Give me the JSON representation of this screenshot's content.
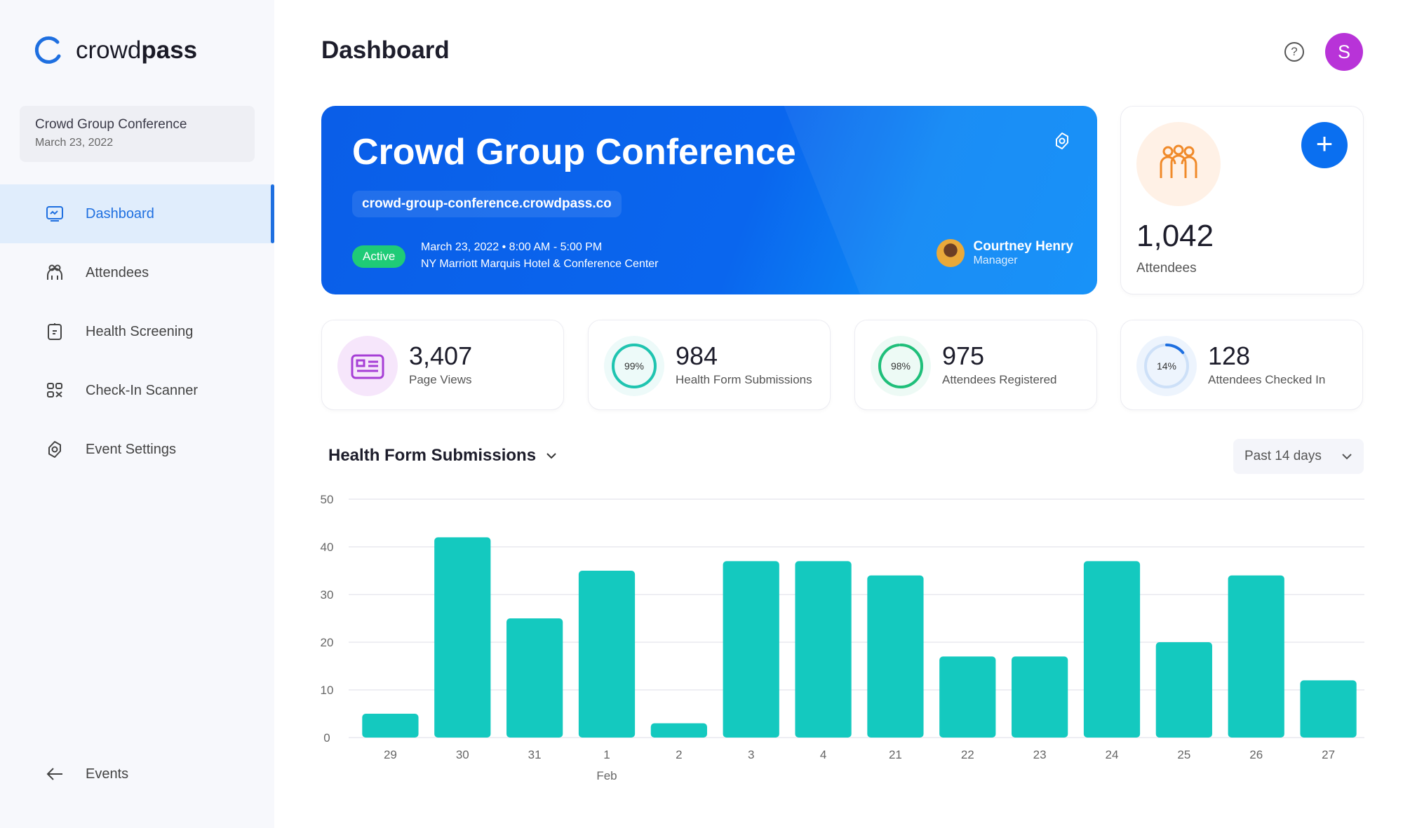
{
  "brand": {
    "name_light": "crowd",
    "name_bold": "pass",
    "accent": "#1e6fe0"
  },
  "sidebar": {
    "event": {
      "name": "Crowd Group Conference",
      "date": "March 23, 2022"
    },
    "items": [
      {
        "label": "Dashboard",
        "icon": "dashboard-icon",
        "active": true
      },
      {
        "label": "Attendees",
        "icon": "attendees-icon"
      },
      {
        "label": "Health Screening",
        "icon": "clipboard-icon"
      },
      {
        "label": "Check-In Scanner",
        "icon": "qr-code-icon"
      },
      {
        "label": "Event Settings",
        "icon": "gear-icon"
      }
    ],
    "back": "Events"
  },
  "header": {
    "title": "Dashboard",
    "help": "?",
    "avatar": "S",
    "avatar_color": "#b833d8"
  },
  "banner": {
    "title": "Crowd Group Conference",
    "url": "crowd-group-conference.crowdpass.co",
    "status": "Active",
    "datetime": "March 23, 2022  •  8:00 AM - 5:00 PM",
    "venue": "NY Marriott Marquis Hotel & Conference Center",
    "manager_name": "Courtney Henry",
    "manager_role": "Manager"
  },
  "attendees": {
    "value": "1,042",
    "label": "Attendees"
  },
  "stats": [
    {
      "value": "3,407",
      "label": "Page Views",
      "icon": "page-views-icon"
    },
    {
      "value": "984",
      "label": "Health Form Submissions",
      "percent": 99,
      "percent_label": "99%",
      "color": "#1fc4b0"
    },
    {
      "value": "975",
      "label": "Attendees Registered",
      "percent": 98,
      "percent_label": "98%",
      "color": "#1fbf7a"
    },
    {
      "value": "128",
      "label": "Attendees Checked In",
      "percent": 14,
      "percent_label": "14%",
      "color": "#1e6fe0"
    }
  ],
  "chart_header": {
    "title": "Health Form Submissions",
    "period": "Past 14 days"
  },
  "chart_data": {
    "type": "bar",
    "categories": [
      "29",
      "30",
      "31",
      "1",
      "2",
      "3",
      "4",
      "21",
      "22",
      "23",
      "24",
      "25",
      "26",
      "27"
    ],
    "values": [
      5,
      42,
      25,
      35,
      3,
      37,
      37,
      34,
      17,
      17,
      37,
      20,
      34,
      12
    ],
    "month_label": "Feb",
    "yticks": [
      "0",
      "10",
      "20",
      "30",
      "40",
      "50"
    ],
    "ylim": [
      0,
      50
    ],
    "grid": true,
    "color": "#14c9bf"
  }
}
